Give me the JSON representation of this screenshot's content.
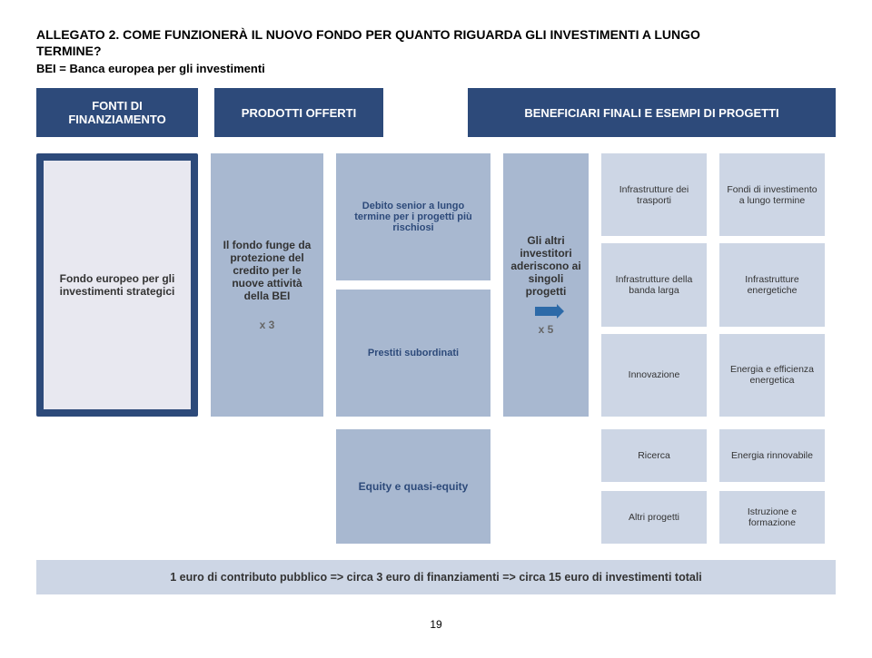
{
  "title_prefix": "ALLEGATO 2. ",
  "title_rest1": "COME FUNZIONERÀ IL NUOVO FONDO PER QUANTO RIGUARDA GLI INVESTIMENTI A LUNGO",
  "title_rest2": "TERMINE?",
  "subtitle": "BEI = Banca europea per gli investimenti",
  "headers": {
    "h1": "FONTI DI FINANZIAMENTO",
    "h2": "PRODOTTI OFFERTI",
    "h3": "BENEFICIARI FINALI E ESEMPI DI PROGETTI"
  },
  "fund": "Fondo europeo per gli investimenti strategici",
  "protect": "Il fondo funge da protezione del credito per le nuove attività della BEI",
  "x3": "x 3",
  "products": {
    "p1": "Debito senior a lungo termine per i progetti più rischiosi",
    "p2": "Prestiti subordinati"
  },
  "investors": "Gli altri investitori aderiscono ai singoli progetti",
  "x5": "x 5",
  "ben_a": {
    "b1": "Infrastrutture dei trasporti",
    "b2": "Infrastrutture della banda larga",
    "b3": "Innovazione"
  },
  "ex_a": {
    "e1": "Fondi di investimento a lungo termine",
    "e2": "Infrastrutture energetiche",
    "e3": "Energia e efficienza energetica"
  },
  "equity": "Equity e quasi-equity",
  "ben_b": {
    "b1": "Ricerca",
    "b2": "Altri progetti"
  },
  "ex_b": {
    "e1": "Energia rinnovabile",
    "e2": "Istruzione e formazione"
  },
  "footer": "1 euro di contributo pubblico => circa 3 euro di finanziamenti => circa 15 euro di investimenti totali",
  "page": "19"
}
